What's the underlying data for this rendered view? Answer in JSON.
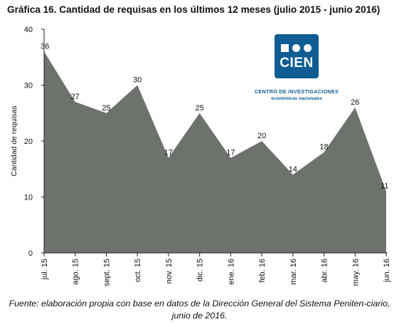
{
  "title": "Gráfica 16.  Cantidad de requisas en los últimos 12 meses (julio 2015 - junio 2016)",
  "source_note": "Fuente: elaboración propia con base en datos de la  Dirección General del Sistema Peniten-ciario, junio de 2016.",
  "logo": {
    "name": "CIEN",
    "line1": "CENTRO DE INVESTIGACIONES",
    "line2": "económicas nacionales",
    "color": "#0f5d92"
  },
  "chart_data": {
    "type": "area",
    "categories": [
      "jul. 15",
      "ago. 15",
      "sept. 15",
      "oct. 15",
      "nov. 15",
      "dic. 15",
      "ene. 16",
      "feb. 16",
      "mar. 16",
      "abr. 16",
      "may. 16",
      "jun. 16"
    ],
    "values": [
      36,
      27,
      25,
      30,
      17,
      25,
      17,
      20,
      14,
      18,
      26,
      11
    ],
    "data_labels": [
      "36",
      "27",
      "25",
      "30",
      "17",
      "25",
      "17",
      "20",
      "14",
      "18",
      "26",
      "11"
    ],
    "title": "Gráfica 16.  Cantidad de requisas en los últimos 12 meses (julio 2015 - junio 2016)",
    "xlabel": "",
    "ylabel": "Cantidad de requisas",
    "ylim": [
      0,
      40
    ],
    "yticks": [
      0,
      10,
      20,
      30,
      40
    ],
    "ytick_labels": [
      "0",
      "10",
      "20",
      "30",
      "40"
    ],
    "grid": false,
    "legend": "none",
    "fill_color": "#6d726d"
  }
}
